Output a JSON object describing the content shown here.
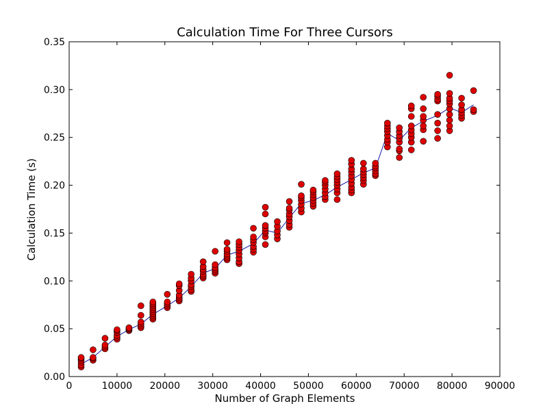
{
  "chart_data": {
    "type": "scatter",
    "title": "Calculation Time For Three Cursors",
    "xlabel": "Number of Graph Elements",
    "ylabel": "Calculation Time (s)",
    "xlim": [
      0,
      90000
    ],
    "ylim": [
      0,
      0.35
    ],
    "xticks": [
      0,
      10000,
      20000,
      30000,
      40000,
      50000,
      60000,
      70000,
      80000,
      90000
    ],
    "yticks": [
      0.0,
      0.05,
      0.1,
      0.15,
      0.2,
      0.25,
      0.3,
      0.35
    ],
    "xtick_labels": [
      "0",
      "10000",
      "20000",
      "30000",
      "40000",
      "50000",
      "60000",
      "70000",
      "80000",
      "90000"
    ],
    "ytick_labels": [
      "0.00",
      "0.05",
      "0.10",
      "0.15",
      "0.20",
      "0.25",
      "0.30",
      "0.35"
    ],
    "grid": false,
    "colors": {
      "points": "#dd0000",
      "point_edge": "#000000",
      "line": "#1a1aaa"
    },
    "groups": [
      {
        "x": 2500,
        "y": [
          0.01,
          0.012,
          0.015,
          0.017,
          0.019,
          0.02
        ]
      },
      {
        "x": 5000,
        "y": [
          0.017,
          0.019,
          0.02,
          0.028
        ]
      },
      {
        "x": 7500,
        "y": [
          0.029,
          0.031,
          0.033,
          0.04
        ]
      },
      {
        "x": 10000,
        "y": [
          0.039,
          0.041,
          0.043,
          0.046,
          0.048,
          0.049
        ]
      },
      {
        "x": 12500,
        "y": [
          0.048,
          0.049,
          0.05,
          0.051
        ]
      },
      {
        "x": 15000,
        "y": [
          0.051,
          0.053,
          0.055,
          0.057,
          0.064,
          0.074
        ]
      },
      {
        "x": 17500,
        "y": [
          0.06,
          0.062,
          0.064,
          0.066,
          0.068,
          0.07,
          0.072,
          0.074,
          0.076,
          0.078
        ]
      },
      {
        "x": 20500,
        "y": [
          0.072,
          0.074,
          0.076,
          0.078,
          0.086
        ]
      },
      {
        "x": 23000,
        "y": [
          0.079,
          0.081,
          0.083,
          0.085,
          0.09,
          0.095,
          0.097
        ]
      },
      {
        "x": 25500,
        "y": [
          0.089,
          0.091,
          0.094,
          0.096,
          0.1,
          0.103,
          0.107
        ]
      },
      {
        "x": 28000,
        "y": [
          0.103,
          0.105,
          0.107,
          0.11,
          0.112,
          0.115,
          0.12
        ]
      },
      {
        "x": 30500,
        "y": [
          0.108,
          0.11,
          0.112,
          0.114,
          0.117,
          0.131
        ]
      },
      {
        "x": 33000,
        "y": [
          0.122,
          0.124,
          0.126,
          0.128,
          0.131,
          0.133,
          0.14
        ]
      },
      {
        "x": 35500,
        "y": [
          0.118,
          0.12,
          0.124,
          0.128,
          0.132,
          0.135,
          0.138,
          0.141
        ]
      },
      {
        "x": 38500,
        "y": [
          0.13,
          0.133,
          0.136,
          0.14,
          0.143,
          0.146,
          0.155
        ]
      },
      {
        "x": 41000,
        "y": [
          0.138,
          0.146,
          0.15,
          0.152,
          0.155,
          0.158,
          0.17,
          0.177
        ]
      },
      {
        "x": 43500,
        "y": [
          0.144,
          0.148,
          0.152,
          0.157,
          0.162
        ]
      },
      {
        "x": 46000,
        "y": [
          0.156,
          0.159,
          0.163,
          0.167,
          0.17,
          0.174,
          0.176,
          0.183
        ]
      },
      {
        "x": 48500,
        "y": [
          0.172,
          0.176,
          0.18,
          0.184,
          0.187,
          0.189,
          0.201
        ]
      },
      {
        "x": 51000,
        "y": [
          0.178,
          0.181,
          0.184,
          0.187,
          0.19,
          0.193,
          0.195
        ]
      },
      {
        "x": 53500,
        "y": [
          0.185,
          0.188,
          0.192,
          0.196,
          0.2,
          0.203,
          0.205
        ]
      },
      {
        "x": 56000,
        "y": [
          0.185,
          0.192,
          0.196,
          0.2,
          0.203,
          0.206,
          0.209,
          0.212
        ]
      },
      {
        "x": 59000,
        "y": [
          0.192,
          0.195,
          0.198,
          0.202,
          0.206,
          0.21,
          0.214,
          0.217,
          0.222,
          0.226
        ]
      },
      {
        "x": 61500,
        "y": [
          0.201,
          0.205,
          0.208,
          0.211,
          0.214,
          0.217,
          0.223
        ]
      },
      {
        "x": 64000,
        "y": [
          0.21,
          0.212,
          0.215,
          0.218,
          0.22,
          0.223
        ]
      },
      {
        "x": 66500,
        "y": [
          0.24,
          0.245,
          0.248,
          0.252,
          0.256,
          0.259,
          0.262,
          0.265
        ]
      },
      {
        "x": 69000,
        "y": [
          0.229,
          0.236,
          0.238,
          0.245,
          0.249,
          0.252,
          0.256,
          0.26
        ]
      },
      {
        "x": 71500,
        "y": [
          0.237,
          0.245,
          0.25,
          0.254,
          0.258,
          0.262,
          0.272,
          0.28,
          0.283
        ]
      },
      {
        "x": 74000,
        "y": [
          0.246,
          0.258,
          0.262,
          0.268,
          0.272,
          0.28,
          0.292
        ]
      },
      {
        "x": 77000,
        "y": [
          0.249,
          0.257,
          0.265,
          0.274,
          0.288,
          0.29,
          0.293,
          0.295
        ]
      },
      {
        "x": 79500,
        "y": [
          0.257,
          0.262,
          0.268,
          0.274,
          0.28,
          0.285,
          0.288,
          0.291,
          0.296,
          0.315
        ]
      },
      {
        "x": 82000,
        "y": [
          0.27,
          0.273,
          0.276,
          0.279,
          0.284,
          0.291
        ]
      },
      {
        "x": 84500,
        "y": [
          0.277,
          0.279,
          0.299
        ]
      }
    ],
    "line": {
      "x": [
        2500,
        5000,
        7500,
        10000,
        12500,
        15000,
        17500,
        20500,
        23000,
        25500,
        28000,
        30500,
        33000,
        35500,
        38500,
        41000,
        43500,
        46000,
        48500,
        51000,
        53500,
        56000,
        59000,
        61500,
        64000,
        66500,
        69000,
        71500,
        74000,
        77000,
        79500,
        82000,
        84500
      ],
      "y": [
        0.013,
        0.02,
        0.031,
        0.042,
        0.049,
        0.055,
        0.065,
        0.074,
        0.082,
        0.094,
        0.108,
        0.113,
        0.127,
        0.131,
        0.139,
        0.153,
        0.15,
        0.166,
        0.181,
        0.184,
        0.19,
        0.198,
        0.206,
        0.213,
        0.218,
        0.254,
        0.247,
        0.26,
        0.267,
        0.273,
        0.281,
        0.276,
        0.284
      ]
    }
  }
}
